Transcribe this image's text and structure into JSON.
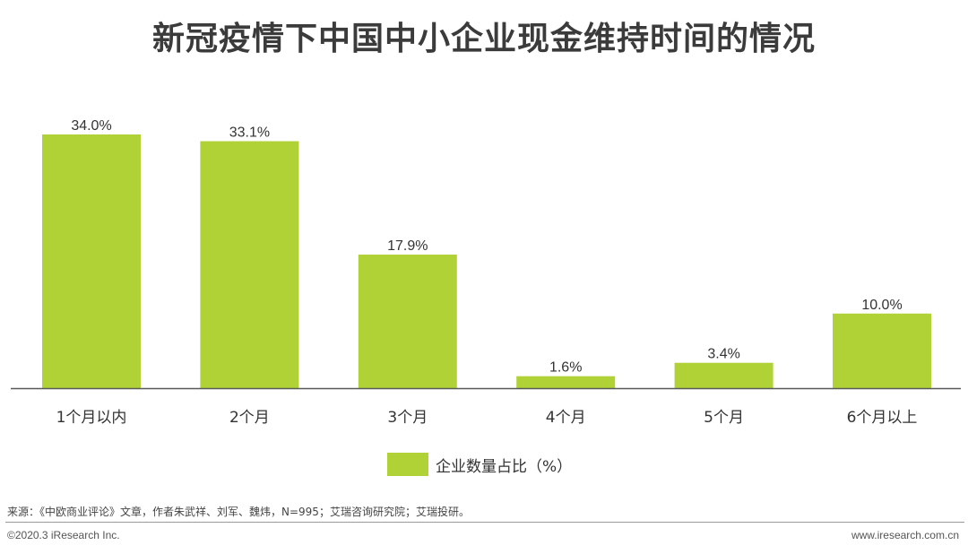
{
  "title": "新冠疫情下中国中小企业现金维持时间的情况",
  "chart_data": {
    "type": "bar",
    "categories": [
      "1个月以内",
      "2个月",
      "3个月",
      "4个月",
      "5个月",
      "6个月以上"
    ],
    "values": [
      34.0,
      33.1,
      17.9,
      1.6,
      3.4,
      10.0
    ],
    "value_labels": [
      "34.0%",
      "33.1%",
      "17.9%",
      "1.6%",
      "3.4%",
      "10.0%"
    ],
    "series": [
      {
        "name": "企业数量占比（%）",
        "values": [
          34.0,
          33.1,
          17.9,
          1.6,
          3.4,
          10.0
        ]
      }
    ],
    "title": "新冠疫情下中国中小企业现金维持时间的情况",
    "xlabel": "",
    "ylabel": "",
    "ylim": [
      0,
      34
    ],
    "grid": false,
    "legend_position": "bottom",
    "bar_color": "#b1d236",
    "axis_color": "#595959"
  },
  "legend": {
    "label": "企业数量占比（%）",
    "color": "#b1d236"
  },
  "footer": {
    "source": "来源：《中欧商业评论》文章，作者朱武祥、刘军、魏炜，N=995；艾瑞咨询研究院；艾瑞投研。",
    "copyright": "©2020.3 iResearch Inc.",
    "website": "www.iresearch.com.cn"
  }
}
